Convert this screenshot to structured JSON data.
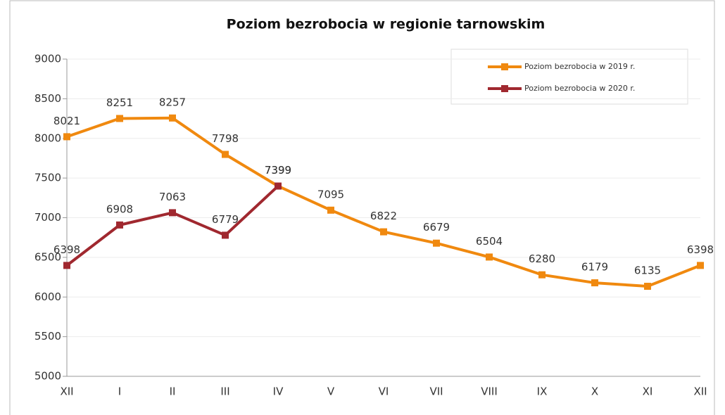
{
  "chart_data": {
    "type": "line",
    "title": "Poziom bezrobocia w regionie tarnowskim",
    "categories": [
      "XII",
      "I",
      "II",
      "III",
      "IV",
      "V",
      "VI",
      "VII",
      "VIII",
      "IX",
      "X",
      "XI",
      "XII"
    ],
    "series": [
      {
        "name": "Poziom  bezrobocia w 2019 r.",
        "color": "#f0890f",
        "values": [
          8021,
          8251,
          8257,
          7798,
          7399,
          7095,
          6822,
          6679,
          6504,
          6280,
          6179,
          6135,
          6398
        ]
      },
      {
        "name": "Poziom  bezrobocia w 2020 r.",
        "color": "#a0282f",
        "values": [
          6398,
          6908,
          7063,
          6779,
          7399,
          null,
          null,
          null,
          null,
          null,
          null,
          null,
          null
        ]
      }
    ],
    "ylim": [
      5000,
      9000
    ],
    "yticks": [
      5000,
      5500,
      6000,
      6500,
      7000,
      7500,
      8000,
      8500,
      9000
    ],
    "grid": true,
    "legend": "top-right"
  }
}
